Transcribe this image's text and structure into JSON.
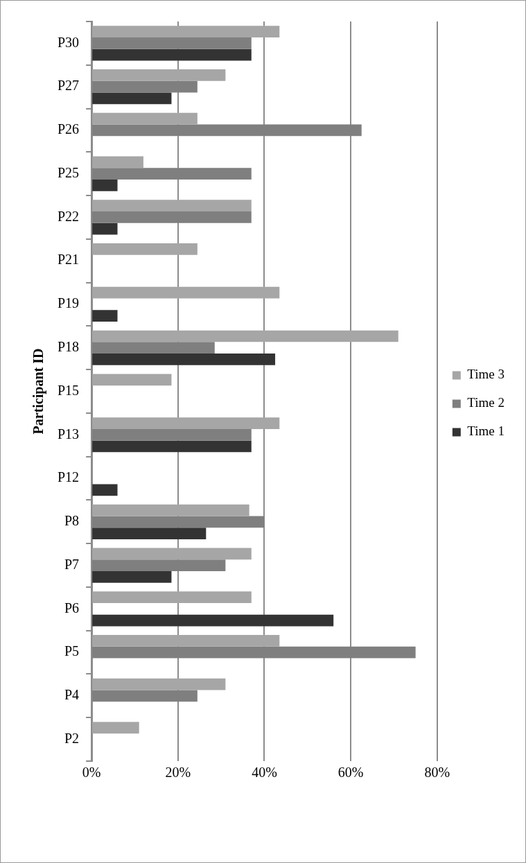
{
  "chart_data": {
    "type": "bar",
    "orientation": "horizontal",
    "ylabel": "Participant ID",
    "categories": [
      "P30",
      "P27",
      "P26",
      "P25",
      "P22",
      "P21",
      "P19",
      "P18",
      "P15",
      "P13",
      "P12",
      "P8",
      "P7",
      "P6",
      "P5",
      "P4",
      "P2"
    ],
    "series": [
      {
        "name": "Time 3",
        "color": "#a6a6a6",
        "values": [
          43.5,
          31,
          24.5,
          12,
          37,
          24.5,
          43.5,
          71,
          18.5,
          43.5,
          0,
          36.5,
          37,
          37,
          43.5,
          31,
          11
        ]
      },
      {
        "name": "Time 2",
        "color": "#7f7f7f",
        "values": [
          37,
          24.5,
          62.5,
          37,
          37,
          0,
          0,
          28.5,
          0,
          37,
          0,
          40,
          31,
          0,
          75,
          24.5,
          0
        ]
      },
      {
        "name": "Time 1",
        "color": "#333333",
        "values": [
          37,
          18.5,
          0,
          6,
          6,
          0,
          6,
          42.5,
          0,
          37,
          6,
          26.5,
          18.5,
          56,
          0,
          0,
          0
        ]
      }
    ],
    "xlim": [
      0,
      80
    ],
    "xticks": [
      {
        "value": 0,
        "label": "0%"
      },
      {
        "value": 20,
        "label": "20%"
      },
      {
        "value": 40,
        "label": "40%"
      },
      {
        "value": 60,
        "label": "60%"
      },
      {
        "value": 80,
        "label": "80%"
      }
    ],
    "grid": "x",
    "legend": "right"
  }
}
